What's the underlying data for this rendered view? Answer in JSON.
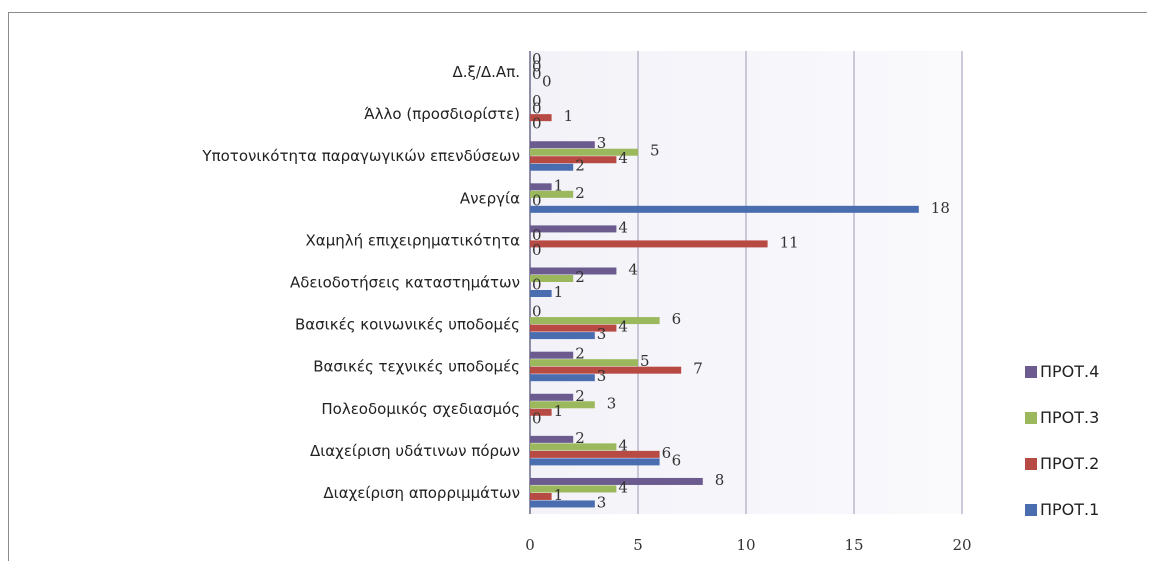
{
  "chart_data": {
    "type": "bar",
    "orientation": "horizontal",
    "categories": [
      "Διαχείριση απορριμμάτων",
      "Διαχείριση υδάτινων πόρων",
      "Πολεοδομικός σχεδιασμός",
      "Βασικές τεχνικές υποδομές",
      "Βασικές κοινωνικές υποδομές",
      "Αδειοδοτήσεις καταστημάτων",
      "Χαμηλή επιχειρηματικότητα",
      "Ανεργία",
      "Υποτονικότητα παραγωγικών επενδύσεων",
      "Άλλο (προσδιορίστε)",
      "Δ.ξ/Δ.Απ."
    ],
    "series": [
      {
        "name": "ΠΡΟΤ.1",
        "color": "#4a6db0",
        "values": [
          3,
          6,
          0,
          3,
          3,
          1,
          0,
          18,
          2,
          0,
          0
        ]
      },
      {
        "name": "ΠΡΟΤ.2",
        "color": "#b84a44",
        "values": [
          1,
          6,
          1,
          7,
          4,
          0,
          11,
          0,
          4,
          1,
          0
        ]
      },
      {
        "name": "ΠΡΟΤ.3",
        "color": "#9bb85c",
        "values": [
          4,
          4,
          3,
          5,
          6,
          2,
          0,
          2,
          5,
          0,
          0
        ]
      },
      {
        "name": "ΠΡΟΤ.4",
        "color": "#6c5b8e",
        "values": [
          8,
          2,
          2,
          2,
          0,
          4,
          4,
          1,
          3,
          0,
          0
        ]
      }
    ],
    "xlim": [
      0,
      20
    ],
    "xticks": [
      "0",
      "5",
      "10",
      "15",
      "20"
    ],
    "grid": true,
    "legend_position": "right"
  }
}
